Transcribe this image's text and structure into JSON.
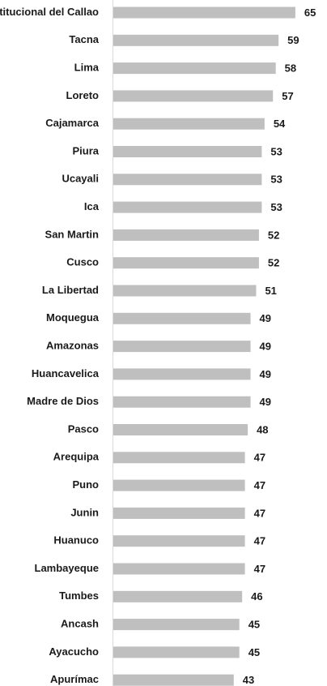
{
  "chart_data": {
    "type": "bar",
    "orientation": "horizontal",
    "categories": [
      "Provincia Constitucional del Callao",
      "Tacna",
      "Lima",
      "Loreto",
      "Cajamarca",
      "Piura",
      "Ucayali",
      "Ica",
      "San Martin",
      "Cusco",
      "La Libertad",
      "Moquegua",
      "Amazonas",
      "Huancavelica",
      "Madre de Dios",
      "Pasco",
      "Arequipa",
      "Puno",
      "Junin",
      "Huanuco",
      "Lambayeque",
      "Tumbes",
      "Ancash",
      "Ayacucho",
      "Apurímac"
    ],
    "values": [
      65,
      59,
      58,
      57,
      54,
      53,
      53,
      53,
      52,
      52,
      51,
      49,
      49,
      49,
      49,
      48,
      47,
      47,
      47,
      47,
      47,
      46,
      45,
      45,
      43
    ],
    "data_labels": true,
    "title": "",
    "xlabel": "",
    "ylabel": "",
    "grid": false,
    "legend": "none",
    "bar_color": "#bfbfbf",
    "axis_color": "#d9d9d9",
    "text_color": "#1a1a1a"
  }
}
